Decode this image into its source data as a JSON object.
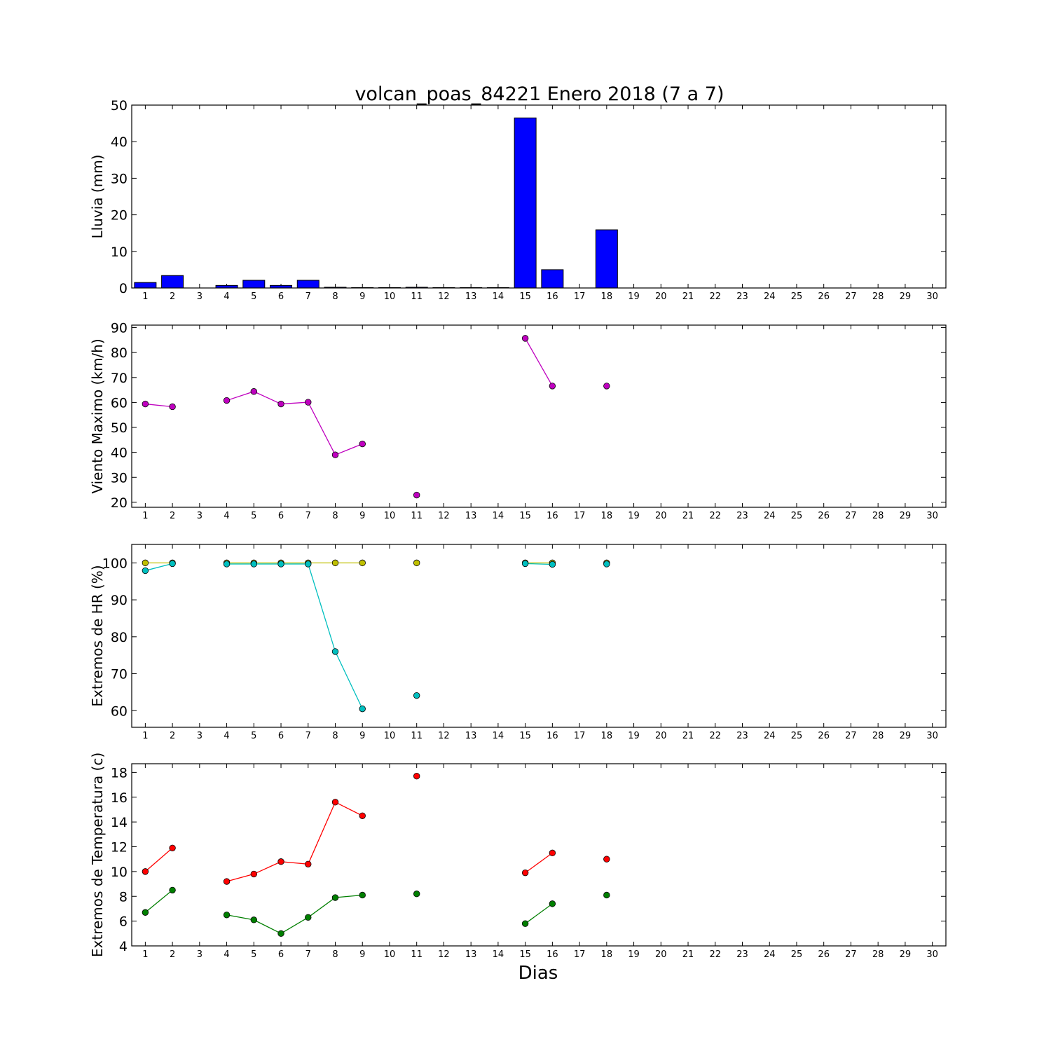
{
  "figure": {
    "title": "volcan_poas_84221 Enero 2018  (7 a 7)",
    "xlabel": "Dias"
  },
  "chart_data": [
    {
      "type": "bar",
      "ylabel": "Lluvia (mm)",
      "x": [
        1,
        2,
        3,
        4,
        5,
        6,
        7,
        8,
        9,
        10,
        11,
        12,
        13,
        14,
        15,
        16,
        17,
        18,
        19,
        20,
        21,
        22,
        23,
        24,
        25,
        26,
        27,
        28,
        29,
        30
      ],
      "xlim": [
        0.5,
        30.5
      ],
      "ylim": [
        0,
        50
      ],
      "yticks": [
        0,
        10,
        20,
        30,
        40,
        50
      ],
      "color": "#0000ff",
      "values": [
        1.5,
        3.4,
        null,
        0.7,
        2.1,
        0.7,
        2.1,
        0.2,
        0,
        0,
        0.2,
        0,
        0,
        0,
        46.5,
        5.0,
        null,
        15.9,
        null,
        null,
        null,
        null,
        null,
        null,
        null,
        null,
        null,
        null,
        null,
        null
      ]
    },
    {
      "type": "line",
      "ylabel": "Viento Maximo (km/h)",
      "x": [
        1,
        2,
        3,
        4,
        5,
        6,
        7,
        8,
        9,
        10,
        11,
        12,
        13,
        14,
        15,
        16,
        17,
        18,
        19,
        20,
        21,
        22,
        23,
        24,
        25,
        26,
        27,
        28,
        29,
        30
      ],
      "xlim": [
        0.5,
        30.5
      ],
      "ylim": [
        18,
        91
      ],
      "yticks": [
        20,
        30,
        40,
        50,
        60,
        70,
        80,
        90
      ],
      "series": [
        {
          "color": "#bf00bf",
          "values": [
            59.4,
            58.3,
            null,
            60.8,
            64.4,
            59.4,
            60.1,
            39.0,
            43.4,
            null,
            22.9,
            null,
            null,
            null,
            85.7,
            66.6,
            null,
            66.6,
            null,
            null,
            null,
            null,
            null,
            null,
            null,
            null,
            null,
            null,
            null,
            null
          ]
        }
      ]
    },
    {
      "type": "line",
      "ylabel": "Extremos de HR (%)",
      "x": [
        1,
        2,
        3,
        4,
        5,
        6,
        7,
        8,
        9,
        10,
        11,
        12,
        13,
        14,
        15,
        16,
        17,
        18,
        19,
        20,
        21,
        22,
        23,
        24,
        25,
        26,
        27,
        28,
        29,
        30
      ],
      "xlim": [
        0.5,
        30.5
      ],
      "ylim": [
        55.5,
        105
      ],
      "yticks": [
        60,
        70,
        80,
        90,
        100
      ],
      "series": [
        {
          "color": "#bfbf00",
          "values": [
            100,
            100,
            null,
            100,
            100,
            100,
            100,
            100,
            100,
            null,
            100,
            null,
            null,
            null,
            100,
            100,
            null,
            100,
            null,
            null,
            null,
            null,
            null,
            null,
            null,
            null,
            null,
            null,
            null,
            null
          ]
        },
        {
          "color": "#00bfbf",
          "values": [
            97.9,
            99.8,
            null,
            99.7,
            99.7,
            99.7,
            99.7,
            76.0,
            60.5,
            null,
            64.1,
            null,
            null,
            null,
            99.8,
            99.6,
            null,
            99.7,
            null,
            null,
            null,
            null,
            null,
            null,
            null,
            null,
            null,
            null,
            null,
            null
          ]
        }
      ]
    },
    {
      "type": "line",
      "ylabel": "Extremos de Temperatura (c)",
      "x": [
        1,
        2,
        3,
        4,
        5,
        6,
        7,
        8,
        9,
        10,
        11,
        12,
        13,
        14,
        15,
        16,
        17,
        18,
        19,
        20,
        21,
        22,
        23,
        24,
        25,
        26,
        27,
        28,
        29,
        30
      ],
      "xlim": [
        0.5,
        30.5
      ],
      "ylim": [
        4,
        18.7
      ],
      "yticks": [
        4,
        6,
        8,
        10,
        12,
        14,
        16,
        18
      ],
      "series": [
        {
          "color": "#ff0000",
          "values": [
            10.0,
            11.9,
            null,
            9.2,
            9.8,
            10.8,
            10.6,
            15.6,
            14.5,
            null,
            17.7,
            null,
            null,
            null,
            9.9,
            11.5,
            null,
            11.0,
            null,
            null,
            null,
            null,
            null,
            null,
            null,
            null,
            null,
            null,
            null,
            null
          ]
        },
        {
          "color": "#007f00",
          "values": [
            6.7,
            8.5,
            null,
            6.5,
            6.1,
            5.0,
            6.3,
            7.9,
            8.1,
            null,
            8.2,
            null,
            null,
            null,
            5.8,
            7.4,
            null,
            8.1,
            null,
            null,
            null,
            null,
            null,
            null,
            null,
            null,
            null,
            null,
            null,
            null
          ]
        }
      ]
    }
  ]
}
